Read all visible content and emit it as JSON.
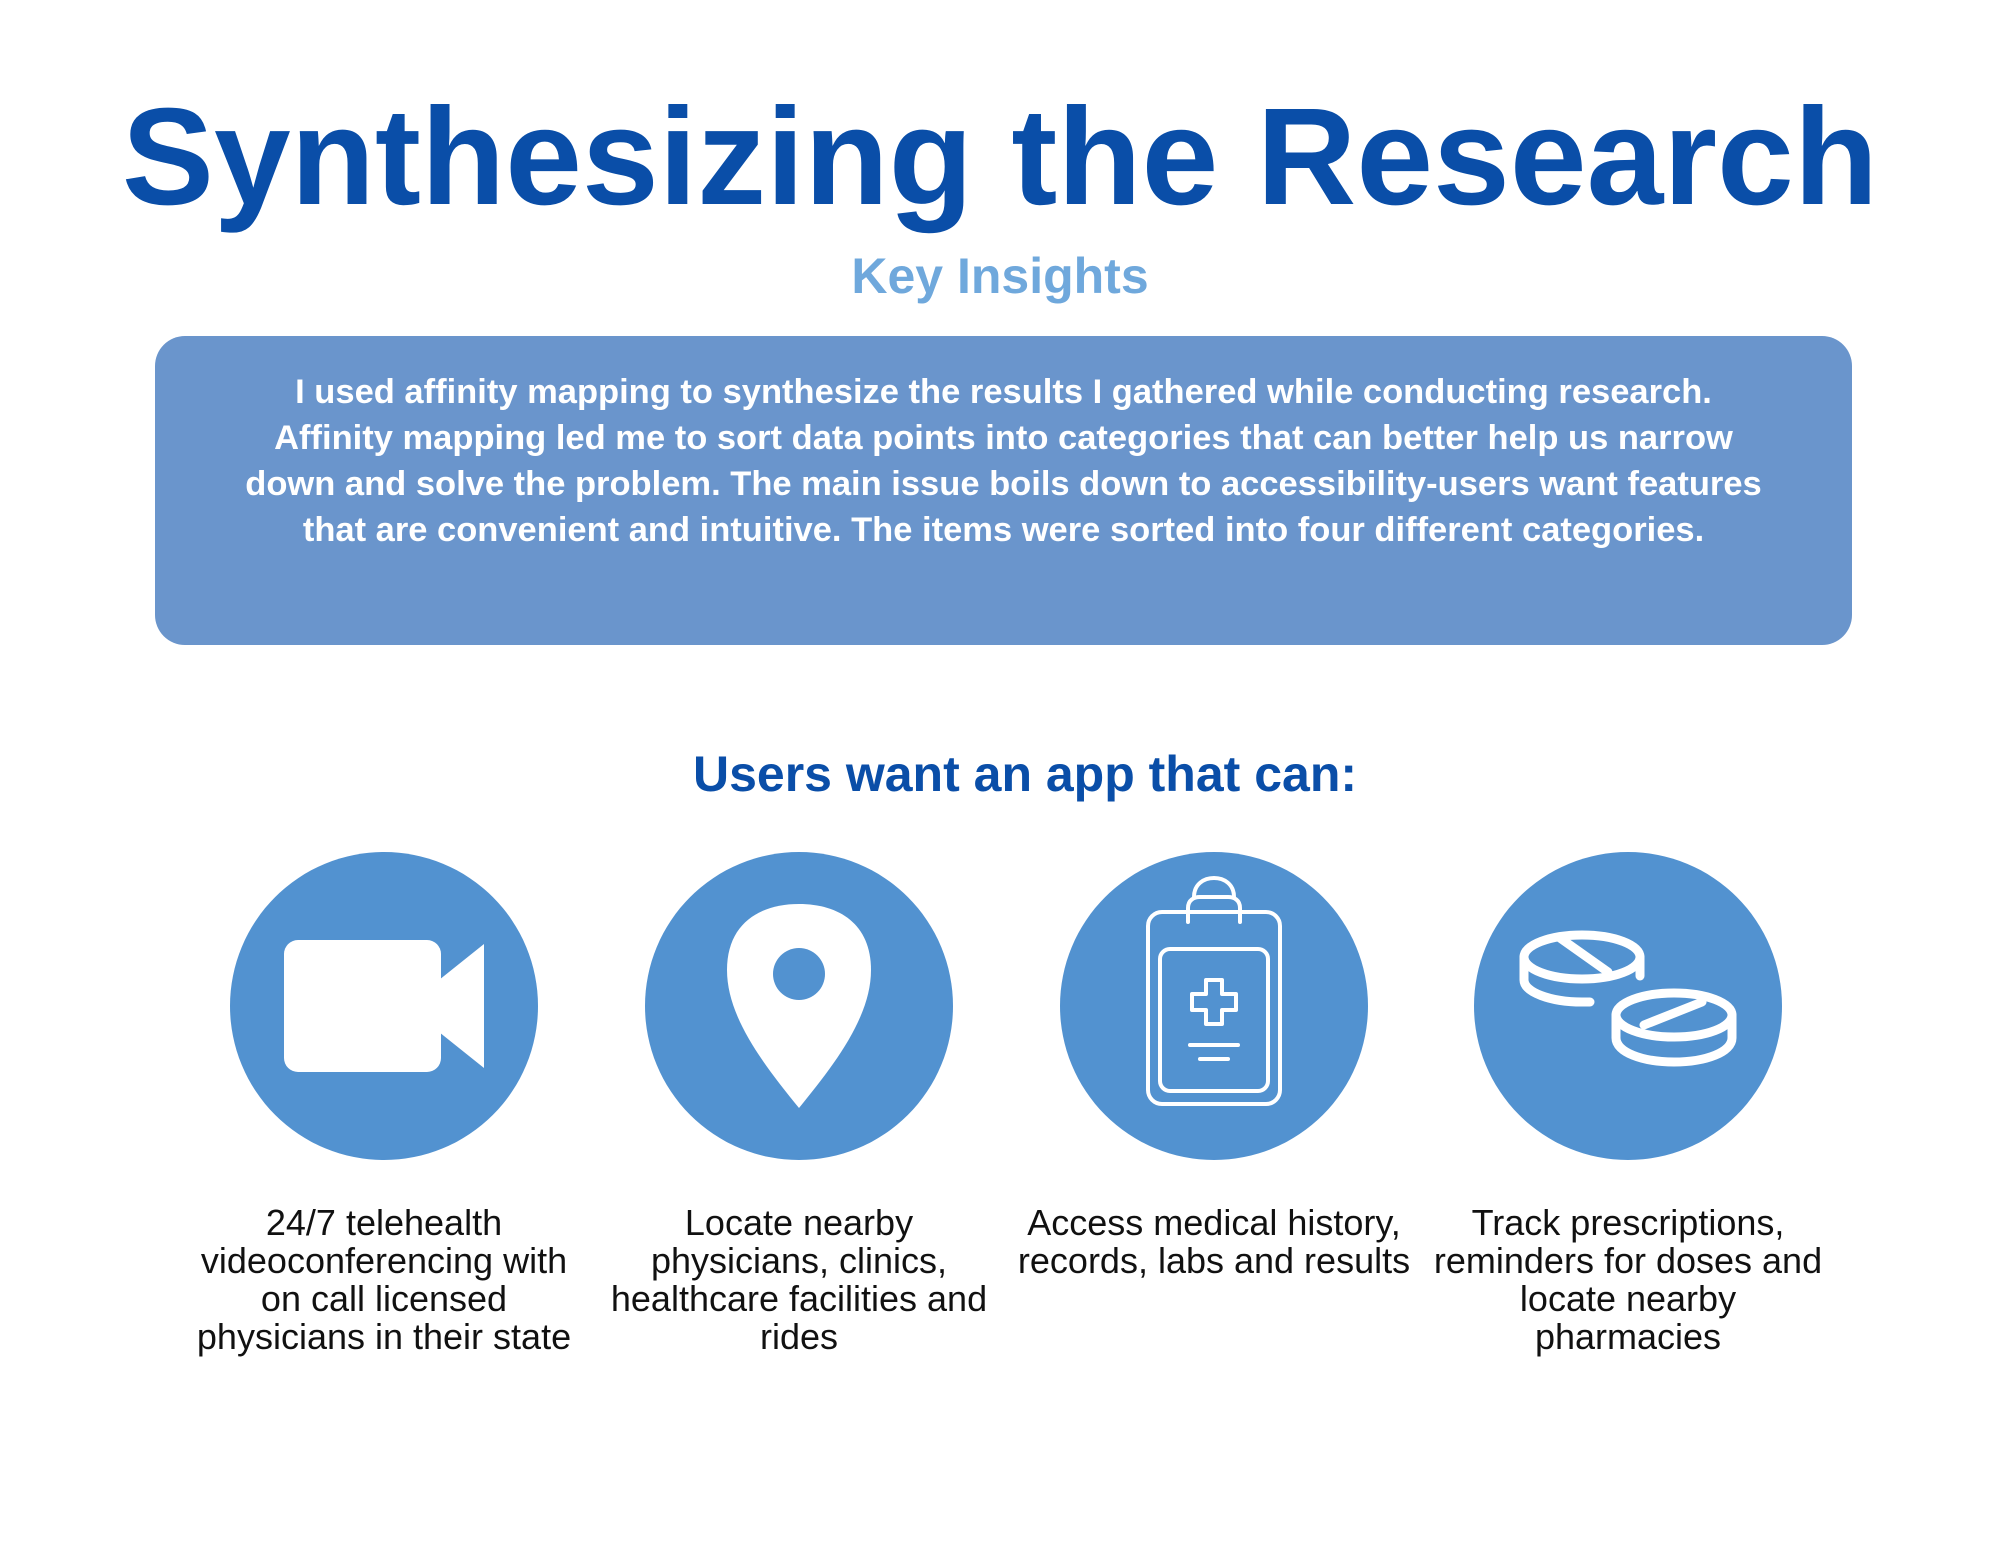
{
  "header": {
    "title": "Synthesizing the Research",
    "subtitle": "Key Insights"
  },
  "summary": {
    "text": "I used affinity mapping to synthesize the results I gathered while conducting research. Affinity mapping led me to sort data points into categories that can better help us narrow down and solve the problem. The main issue boils down to accessibility-users want features that are convenient and intuitive. The items were sorted into four different categories."
  },
  "features_section": {
    "heading": "Users want an app that can:",
    "items": [
      {
        "icon": "video-camera-icon",
        "label": "24/7 telehealth videoconferencing with on call licensed physicians in their state"
      },
      {
        "icon": "location-pin-icon",
        "label": "Locate nearby physicians, clinics, healthcare facilities and rides"
      },
      {
        "icon": "medical-clipboard-icon",
        "label": "Access medical history, records, labs and results"
      },
      {
        "icon": "pills-icon",
        "label": "Track prescriptions, reminders for doses and locate nearby pharmacies"
      }
    ]
  },
  "colors": {
    "title": "#0a4ea8",
    "subtitle": "#6fa8dc",
    "summary_box": "#6a95cc",
    "icon_circle": "#5292d0",
    "body_text": "#111111"
  }
}
